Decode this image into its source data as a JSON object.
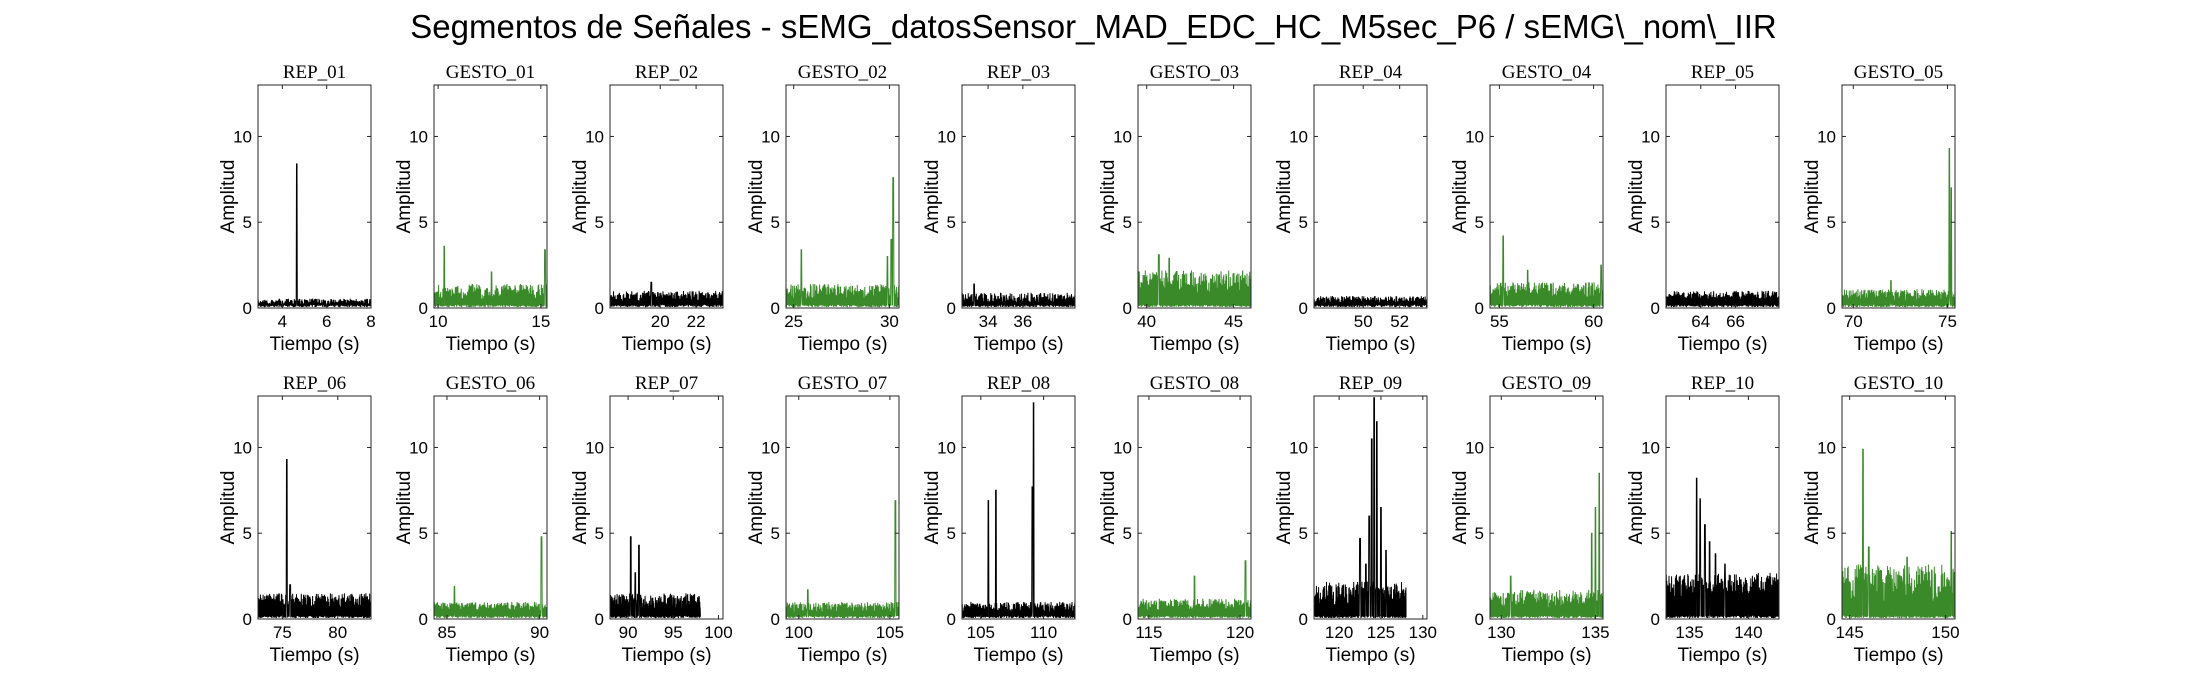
{
  "figure": {
    "title": "Segmentos de Señales - sEMG_datosSensor_MAD_EDC_HC_M5sec_P6 / sEMG\\_nom\\_IIR"
  },
  "colors": {
    "rep": "#000000",
    "gesto": "#3a8a2a"
  },
  "chart_data": [
    {
      "type": "line",
      "title": "REP_01",
      "xlabel": "Tiempo (s)",
      "ylabel": "Amplitud",
      "xlim": [
        2.9,
        8
      ],
      "ylim": [
        0,
        13
      ],
      "xticks": [
        4,
        6,
        8
      ],
      "yticks": [
        0,
        5,
        10
      ],
      "color": "rep",
      "series": [
        {
          "baseline": [
            0.2,
            0.55
          ],
          "peaks": [
            [
              4.65,
              8.4
            ]
          ]
        }
      ]
    },
    {
      "type": "line",
      "title": "GESTO_01",
      "xlabel": "Tiempo (s)",
      "ylabel": "Amplitud",
      "xlim": [
        9.8,
        15.3
      ],
      "ylim": [
        0,
        13
      ],
      "xticks": [
        10,
        15
      ],
      "yticks": [
        0,
        5,
        10
      ],
      "color": "gesto",
      "series": [
        {
          "baseline": [
            0.5,
            1.4
          ],
          "peaks": [
            [
              10.3,
              3.6
            ],
            [
              15.2,
              3.4
            ],
            [
              12.6,
              2.1
            ]
          ]
        }
      ]
    },
    {
      "type": "line",
      "title": "REP_02",
      "xlabel": "Tiempo (s)",
      "ylabel": "Amplitud",
      "xlim": [
        17.2,
        23.5
      ],
      "ylim": [
        0,
        13
      ],
      "xticks": [
        20,
        22
      ],
      "yticks": [
        0,
        5,
        10
      ],
      "color": "rep",
      "series": [
        {
          "baseline": [
            0.4,
            1.0
          ],
          "peaks": [
            [
              19.5,
              1.5
            ]
          ]
        }
      ]
    },
    {
      "type": "line",
      "title": "GESTO_02",
      "xlabel": "Tiempo (s)",
      "ylabel": "Amplitud",
      "xlim": [
        24.6,
        30.5
      ],
      "ylim": [
        0,
        13
      ],
      "xticks": [
        25,
        30
      ],
      "yticks": [
        0,
        5,
        10
      ],
      "color": "gesto",
      "series": [
        {
          "baseline": [
            0.5,
            1.4
          ],
          "peaks": [
            [
              25.4,
              3.4
            ],
            [
              30.2,
              7.6
            ],
            [
              30.1,
              4.0
            ],
            [
              29.9,
              3.0
            ]
          ]
        }
      ]
    },
    {
      "type": "line",
      "title": "REP_03",
      "xlabel": "Tiempo (s)",
      "ylabel": "Amplitud",
      "xlim": [
        32.5,
        39
      ],
      "ylim": [
        0,
        13
      ],
      "xticks": [
        34,
        36
      ],
      "yticks": [
        0,
        5,
        10
      ],
      "color": "rep",
      "series": [
        {
          "baseline": [
            0.3,
            0.9
          ],
          "peaks": [
            [
              33.2,
              1.4
            ]
          ]
        }
      ]
    },
    {
      "type": "line",
      "title": "GESTO_03",
      "xlabel": "Tiempo (s)",
      "ylabel": "Amplitud",
      "xlim": [
        39.5,
        46
      ],
      "ylim": [
        0,
        13
      ],
      "xticks": [
        40,
        45
      ],
      "yticks": [
        0,
        5,
        10
      ],
      "color": "gesto",
      "series": [
        {
          "baseline": [
            0.8,
            2.2
          ],
          "peaks": [
            [
              40.7,
              3.1
            ],
            [
              41.3,
              2.9
            ],
            [
              45.5,
              1.9
            ]
          ]
        }
      ]
    },
    {
      "type": "line",
      "title": "REP_04",
      "xlabel": "Tiempo (s)",
      "ylabel": "Amplitud",
      "xlim": [
        47.3,
        53.5
      ],
      "ylim": [
        0,
        13
      ],
      "xticks": [
        50,
        52
      ],
      "yticks": [
        0,
        5,
        10
      ],
      "color": "rep",
      "series": [
        {
          "baseline": [
            0.3,
            0.7
          ],
          "peaks": []
        }
      ]
    },
    {
      "type": "line",
      "title": "GESTO_04",
      "xlabel": "Tiempo (s)",
      "ylabel": "Amplitud",
      "xlim": [
        54.5,
        60.5
      ],
      "ylim": [
        0,
        13
      ],
      "xticks": [
        55,
        60
      ],
      "yticks": [
        0,
        5,
        10
      ],
      "color": "gesto",
      "series": [
        {
          "baseline": [
            0.6,
            1.5
          ],
          "peaks": [
            [
              55.2,
              4.2
            ],
            [
              60.4,
              2.5
            ],
            [
              56.5,
              2.2
            ]
          ]
        }
      ]
    },
    {
      "type": "line",
      "title": "REP_05",
      "xlabel": "Tiempo (s)",
      "ylabel": "Amplitud",
      "xlim": [
        62,
        68.5
      ],
      "ylim": [
        0,
        13
      ],
      "xticks": [
        64,
        66
      ],
      "yticks": [
        0,
        5,
        10
      ],
      "color": "rep",
      "series": [
        {
          "baseline": [
            0.5,
            1.0
          ],
          "peaks": []
        }
      ]
    },
    {
      "type": "line",
      "title": "GESTO_05",
      "xlabel": "Tiempo (s)",
      "ylabel": "Amplitud",
      "xlim": [
        69.4,
        75.4
      ],
      "ylim": [
        0,
        13
      ],
      "xticks": [
        70,
        75
      ],
      "yticks": [
        0,
        5,
        10
      ],
      "color": "gesto",
      "series": [
        {
          "baseline": [
            0.4,
            1.1
          ],
          "peaks": [
            [
              75.1,
              9.3
            ],
            [
              75.2,
              7.0
            ],
            [
              72,
              1.6
            ]
          ]
        }
      ]
    },
    {
      "type": "line",
      "title": "REP_06",
      "xlabel": "Tiempo (s)",
      "ylabel": "Amplitud",
      "xlim": [
        72.8,
        83
      ],
      "ylim": [
        0,
        13
      ],
      "xticks": [
        75,
        80
      ],
      "yticks": [
        0,
        5,
        10
      ],
      "color": "rep",
      "series": [
        {
          "baseline": [
            0.7,
            1.5
          ],
          "peaks": [
            [
              75.4,
              9.3
            ],
            [
              75.7,
              2.0
            ]
          ]
        }
      ]
    },
    {
      "type": "line",
      "title": "GESTO_06",
      "xlabel": "Tiempo (s)",
      "ylabel": "Amplitud",
      "xlim": [
        84.3,
        90.4
      ],
      "ylim": [
        0,
        13
      ],
      "xticks": [
        85,
        90
      ],
      "yticks": [
        0,
        5,
        10
      ],
      "color": "gesto",
      "series": [
        {
          "baseline": [
            0.5,
            1.0
          ],
          "peaks": [
            [
              90.1,
              4.8
            ],
            [
              85.4,
              1.9
            ]
          ]
        }
      ]
    },
    {
      "type": "line",
      "title": "REP_07",
      "xlabel": "Tiempo (s)",
      "ylabel": "Amplitud",
      "xlim": [
        88,
        100.5
      ],
      "ylim": [
        0,
        13
      ],
      "xticks": [
        90,
        95,
        100
      ],
      "yticks": [
        0,
        5,
        10
      ],
      "color": "rep",
      "series": [
        {
          "baseline": [
            0.6,
            1.5
          ],
          "peaks": [
            [
              90.3,
              4.8
            ],
            [
              91.2,
              4.3
            ],
            [
              90.8,
              2.7
            ]
          ]
        }
      ],
      "line_end": 98
    },
    {
      "type": "line",
      "title": "GESTO_07",
      "xlabel": "Tiempo (s)",
      "ylabel": "Amplitud",
      "xlim": [
        99.3,
        105.5
      ],
      "ylim": [
        0,
        13
      ],
      "xticks": [
        100,
        105
      ],
      "yticks": [
        0,
        5,
        10
      ],
      "color": "gesto",
      "series": [
        {
          "baseline": [
            0.4,
            1.0
          ],
          "peaks": [
            [
              105.3,
              6.9
            ],
            [
              100.5,
              1.7
            ]
          ]
        }
      ]
    },
    {
      "type": "line",
      "title": "REP_08",
      "xlabel": "Tiempo (s)",
      "ylabel": "Amplitud",
      "xlim": [
        103.5,
        112.5
      ],
      "ylim": [
        0,
        13
      ],
      "xticks": [
        105,
        110
      ],
      "yticks": [
        0,
        5,
        10
      ],
      "color": "rep",
      "series": [
        {
          "baseline": [
            0.4,
            1.0
          ],
          "peaks": [
            [
              109.2,
              12.6
            ],
            [
              109.1,
              7.7
            ],
            [
              106.2,
              7.5
            ],
            [
              105.6,
              6.9
            ]
          ]
        }
      ]
    },
    {
      "type": "line",
      "title": "GESTO_08",
      "xlabel": "Tiempo (s)",
      "ylabel": "Amplitud",
      "xlim": [
        114.4,
        120.6
      ],
      "ylim": [
        0,
        13
      ],
      "xticks": [
        115,
        120
      ],
      "yticks": [
        0,
        5,
        10
      ],
      "color": "gesto",
      "series": [
        {
          "baseline": [
            0.5,
            1.2
          ],
          "peaks": [
            [
              120.3,
              3.4
            ],
            [
              117.5,
              2.5
            ]
          ]
        }
      ]
    },
    {
      "type": "line",
      "title": "REP_09",
      "xlabel": "Tiempo (s)",
      "ylabel": "Amplitud",
      "xlim": [
        117,
        130.5
      ],
      "ylim": [
        0,
        13
      ],
      "xticks": [
        120,
        125,
        130
      ],
      "yticks": [
        0,
        5,
        10
      ],
      "color": "rep",
      "series": [
        {
          "baseline": [
            0.7,
            2.2
          ],
          "peaks": [
            [
              124.2,
              12.9
            ],
            [
              124.5,
              11.5
            ],
            [
              123.9,
              10.5
            ],
            [
              123.6,
              6.0
            ],
            [
              122.5,
              4.7
            ],
            [
              125.0,
              6.5
            ],
            [
              125.6,
              4.0
            ],
            [
              123.2,
              3.2
            ]
          ]
        }
      ],
      "line_end": 128
    },
    {
      "type": "line",
      "title": "GESTO_09",
      "xlabel": "Tiempo (s)",
      "ylabel": "Amplitud",
      "xlim": [
        129.4,
        135.4
      ],
      "ylim": [
        0,
        13
      ],
      "xticks": [
        130,
        135
      ],
      "yticks": [
        0,
        5,
        10
      ],
      "color": "gesto",
      "series": [
        {
          "baseline": [
            0.6,
            1.7
          ],
          "peaks": [
            [
              135.2,
              8.5
            ],
            [
              135.0,
              6.5
            ],
            [
              134.8,
              5.0
            ],
            [
              130.5,
              2.5
            ]
          ]
        }
      ]
    },
    {
      "type": "line",
      "title": "REP_10",
      "xlabel": "Tiempo (s)",
      "ylabel": "Amplitud",
      "xlim": [
        133,
        142.6
      ],
      "ylim": [
        0,
        13
      ],
      "xticks": [
        135,
        140
      ],
      "yticks": [
        0,
        5,
        10
      ],
      "color": "rep",
      "series": [
        {
          "baseline": [
            1.2,
            2.7
          ],
          "peaks": [
            [
              135.6,
              8.2
            ],
            [
              135.9,
              7.0
            ],
            [
              136.3,
              5.5
            ],
            [
              136.7,
              4.5
            ],
            [
              137.2,
              3.8
            ],
            [
              138.0,
              3.2
            ]
          ]
        }
      ]
    },
    {
      "type": "line",
      "title": "GESTO_10",
      "xlabel": "Tiempo (s)",
      "ylabel": "Amplitud",
      "xlim": [
        144.6,
        150.5
      ],
      "ylim": [
        0,
        13
      ],
      "xticks": [
        145,
        150
      ],
      "yticks": [
        0,
        5,
        10
      ],
      "color": "gesto",
      "series": [
        {
          "baseline": [
            1.0,
            3.2
          ],
          "peaks": [
            [
              145.7,
              9.9
            ],
            [
              146.0,
              4.2
            ],
            [
              150.3,
              5.1
            ],
            [
              148.0,
              3.6
            ]
          ]
        }
      ]
    }
  ]
}
